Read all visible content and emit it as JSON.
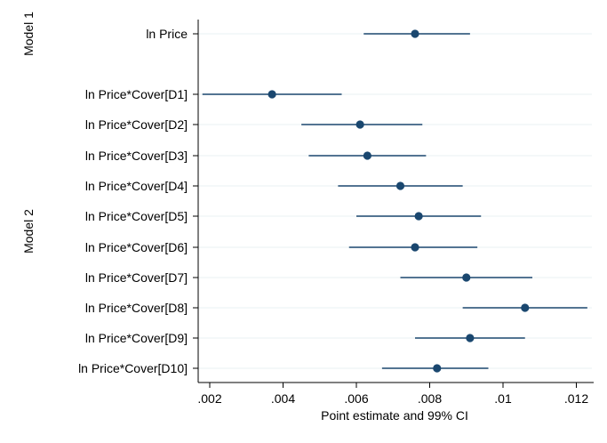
{
  "chart_data": {
    "type": "coefficient-plot",
    "xlabel": "Point estimate and 99% CI",
    "x_ticks": [
      0.002,
      0.004,
      0.006,
      0.008,
      0.01,
      0.012
    ],
    "x_tick_labels": [
      ".002",
      ".004",
      ".006",
      ".008",
      ".01",
      ".012"
    ],
    "xlim": [
      0.0017,
      0.0125
    ],
    "grid": "horizontal",
    "groups": [
      {
        "name": "Model 1",
        "rows": [
          {
            "label": "ln Price",
            "estimate": 0.0076,
            "ci_low": 0.0062,
            "ci_high": 0.0091
          }
        ]
      },
      {
        "name": "Model 2",
        "rows": [
          {
            "label": "ln Price*Cover[D1]",
            "estimate": 0.0037,
            "ci_low": 0.0018,
            "ci_high": 0.0056
          },
          {
            "label": "ln Price*Cover[D2]",
            "estimate": 0.0061,
            "ci_low": 0.0045,
            "ci_high": 0.0078
          },
          {
            "label": "ln Price*Cover[D3]",
            "estimate": 0.0063,
            "ci_low": 0.0047,
            "ci_high": 0.0079
          },
          {
            "label": "ln Price*Cover[D4]",
            "estimate": 0.0072,
            "ci_low": 0.0055,
            "ci_high": 0.0089
          },
          {
            "label": "ln Price*Cover[D5]",
            "estimate": 0.0077,
            "ci_low": 0.006,
            "ci_high": 0.0094
          },
          {
            "label": "ln Price*Cover[D6]",
            "estimate": 0.0076,
            "ci_low": 0.0058,
            "ci_high": 0.0093
          },
          {
            "label": "ln Price*Cover[D7]",
            "estimate": 0.009,
            "ci_low": 0.0072,
            "ci_high": 0.0108
          },
          {
            "label": "ln Price*Cover[D8]",
            "estimate": 0.0106,
            "ci_low": 0.0089,
            "ci_high": 0.0123
          },
          {
            "label": "ln Price*Cover[D9]",
            "estimate": 0.0091,
            "ci_low": 0.0076,
            "ci_high": 0.0106
          },
          {
            "label": "ln Price*Cover[D10]",
            "estimate": 0.0082,
            "ci_low": 0.0067,
            "ci_high": 0.0096
          }
        ]
      }
    ],
    "colors": {
      "marker": "#1a476f",
      "ci_line": "#1a476f",
      "grid": "#eaf2f3",
      "axis": "#000000"
    }
  }
}
